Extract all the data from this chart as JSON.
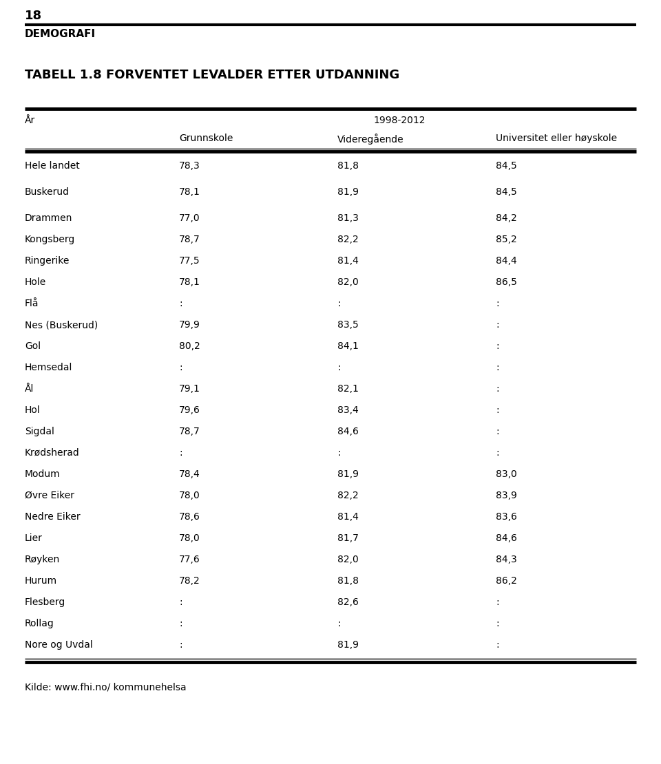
{
  "page_number": "18",
  "section": "DEMOGRAFI",
  "title": "TABELL 1.8 FORVENTET LEVALDER ETTER UTDANNING",
  "sub_header": "1998-2012",
  "col2": "Grunnskole",
  "col3": "Videregående",
  "col4": "Universitet eller høyskole",
  "rows": [
    [
      "Hele landet",
      "78,3",
      "81,8",
      "84,5"
    ],
    [
      "Buskerud",
      "78,1",
      "81,9",
      "84,5"
    ],
    [
      "Drammen",
      "77,0",
      "81,3",
      "84,2"
    ],
    [
      "Kongsberg",
      "78,7",
      "82,2",
      "85,2"
    ],
    [
      "Ringerike",
      "77,5",
      "81,4",
      "84,4"
    ],
    [
      "Hole",
      "78,1",
      "82,0",
      "86,5"
    ],
    [
      "Flå",
      ":",
      ":",
      ":"
    ],
    [
      "Nes (Buskerud)",
      "79,9",
      "83,5",
      ":"
    ],
    [
      "Gol",
      "80,2",
      "84,1",
      ":"
    ],
    [
      "Hemsedal",
      ":",
      ":",
      ":"
    ],
    [
      "Ål",
      "79,1",
      "82,1",
      ":"
    ],
    [
      "Hol",
      "79,6",
      "83,4",
      ":"
    ],
    [
      "Sigdal",
      "78,7",
      "84,6",
      ":"
    ],
    [
      "Krødsherad",
      ":",
      ":",
      ":"
    ],
    [
      "Modum",
      "78,4",
      "81,9",
      "83,0"
    ],
    [
      "Øvre Eiker",
      "78,0",
      "82,2",
      "83,9"
    ],
    [
      "Nedre Eiker",
      "78,6",
      "81,4",
      "83,6"
    ],
    [
      "Lier",
      "78,0",
      "81,7",
      "84,6"
    ],
    [
      "Røyken",
      "77,6",
      "82,0",
      "84,3"
    ],
    [
      "Hurum",
      "78,2",
      "81,8",
      "86,2"
    ],
    [
      "Flesberg",
      ":",
      "82,6",
      ":"
    ],
    [
      "Rollag",
      ":",
      ":",
      ":"
    ],
    [
      "Nore og Uvdal",
      ":",
      "81,9",
      ":"
    ]
  ],
  "source": "Kilde: www.fhi.no/ kommunehelsa",
  "background_color": "#ffffff",
  "text_color": "#000000"
}
